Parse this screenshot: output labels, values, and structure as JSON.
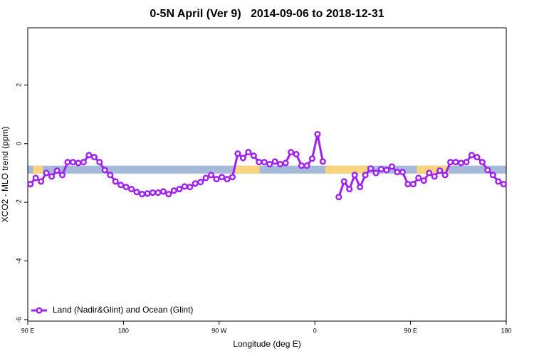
{
  "chart_data": {
    "type": "line",
    "title": "0-5N April (Ver 9)   2014-09-06 to 2018-12-31",
    "x_label": "Longitude (deg E)",
    "y_label": "XCO2 - MLO trend (ppm)",
    "xlim": [
      90,
      540
    ],
    "ylim": [
      -6.05,
      3.95
    ],
    "xticks": [
      {
        "value": 90,
        "label": "90 E"
      },
      180,
      {
        "value": 270,
        "label": "90 W"
      },
      {
        "value": 360,
        "label": "0"
      },
      {
        "value": 450,
        "label": "90 E"
      },
      {
        "value": 540,
        "label": "180"
      }
    ],
    "yticks": [
      2,
      0,
      -2,
      -4,
      -6
    ],
    "legend_position": "bottom-left",
    "strip": {
      "range": [
        -1.02,
        -0.75
      ],
      "ocean_color": "#a5b9d9",
      "land_color": "#f8d47c",
      "land_segments": [
        [
          95,
          104
        ],
        [
          285,
          308
        ],
        [
          370,
          409
        ],
        [
          456,
          486
        ]
      ]
    },
    "x": [
      92.5,
      97.5,
      102.5,
      107.5,
      112.5,
      117.5,
      122.5,
      127.5,
      132.5,
      137.5,
      142.5,
      147.5,
      152.5,
      157.5,
      162.5,
      167.5,
      172.5,
      177.5,
      182.5,
      187.5,
      192.5,
      197.5,
      202.5,
      207.5,
      212.5,
      217.5,
      222.5,
      227.5,
      232.5,
      237.5,
      242.5,
      247.5,
      252.5,
      257.5,
      262.5,
      267.5,
      272.5,
      277.5,
      282.5,
      287.5,
      292.5,
      297.5,
      302.5,
      307.5,
      312.5,
      317.5,
      322.5,
      327.5,
      332.5,
      337.5,
      342.5,
      347.5,
      352.5,
      357.5,
      362.5,
      367.5,
      372.5,
      377.5,
      382.5,
      387.5,
      392.5,
      397.5,
      402.5,
      407.5,
      412.5,
      417.5,
      422.5,
      427.5,
      432.5,
      437.5,
      442.5,
      447.5,
      452.5,
      457.5,
      462.5,
      467.5,
      472.5,
      477.5,
      482.5,
      487.5,
      492.5,
      497.5,
      502.5,
      507.5,
      512.5,
      517.5,
      522.5,
      527.5,
      532.5,
      537.5
    ],
    "series": [
      {
        "name": "Land (Nadir&Glint) and Ocean (Glint)",
        "color": "#a020f0",
        "values": [
          -1.38,
          -1.17,
          -1.29,
          -1.0,
          -1.12,
          -0.92,
          -1.07,
          -0.63,
          -0.63,
          -0.66,
          -0.63,
          -0.39,
          -0.46,
          -0.63,
          -0.9,
          -1.07,
          -1.29,
          -1.41,
          -1.48,
          -1.55,
          -1.65,
          -1.72,
          -1.7,
          -1.67,
          -1.67,
          -1.63,
          -1.72,
          -1.6,
          -1.55,
          -1.46,
          -1.48,
          -1.36,
          -1.31,
          -1.17,
          -1.07,
          -1.21,
          -1.14,
          -1.21,
          -1.14,
          -0.34,
          -0.49,
          -0.29,
          -0.41,
          -0.63,
          -0.63,
          -0.7,
          -0.61,
          -0.7,
          -0.66,
          -0.29,
          -0.36,
          -0.75,
          -0.75,
          -0.51,
          0.32,
          -0.61,
          null,
          null,
          -1.82,
          -1.29,
          -1.55,
          -1.07,
          -1.48,
          -1.07,
          -0.85,
          -1.0,
          -0.87,
          -0.9,
          -0.78,
          -0.97,
          -0.97,
          -1.38,
          -1.38,
          -1.17,
          -1.26,
          -1.0,
          -1.12,
          -0.92,
          -1.07,
          -0.63,
          -0.63,
          -0.66,
          -0.63,
          -0.39,
          -0.46,
          -0.63,
          -0.9,
          -1.07,
          -1.29,
          -1.38
        ]
      }
    ]
  }
}
